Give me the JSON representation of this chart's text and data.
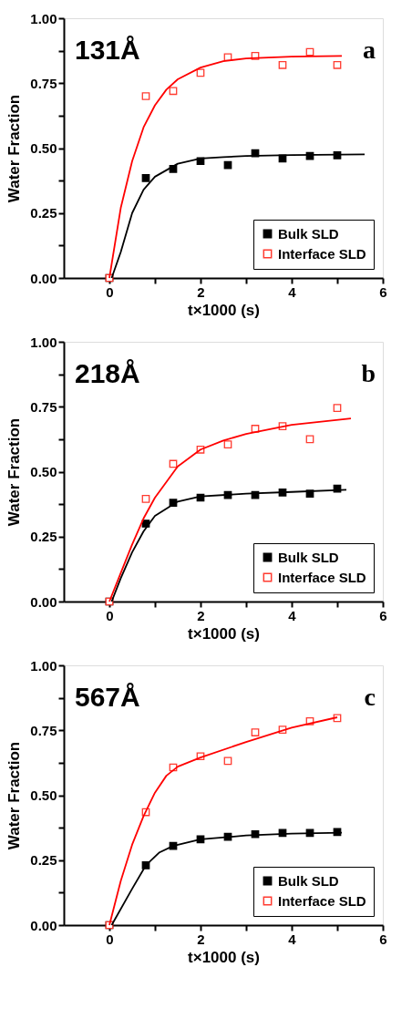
{
  "chart_data": [
    {
      "type": "scatter",
      "xlabel": "t×1000 (s)",
      "ylabel": "Water Fraction",
      "annotations": [
        "131Å",
        "a"
      ],
      "xlim": [
        -1,
        6
      ],
      "xticks": [
        0,
        {
          "value": 1,
          "label": null
        },
        2,
        {
          "value": 3,
          "label": null
        },
        4,
        {
          "value": 5,
          "label": null
        },
        6
      ],
      "ylim": [
        0,
        1
      ],
      "yticks": [
        {
          "value": 0,
          "label": "0.00"
        },
        {
          "value": 0.125,
          "label": null
        },
        {
          "value": 0.25,
          "label": "0.25"
        },
        {
          "value": 0.375,
          "label": null
        },
        {
          "value": 0.5,
          "label": "0.50"
        },
        {
          "value": 0.625,
          "label": null
        },
        {
          "value": 0.75,
          "label": "0.75"
        },
        {
          "value": 0.875,
          "label": null
        },
        {
          "value": 1,
          "label": "1.00"
        }
      ],
      "grid": false,
      "legend": "bottom right",
      "series": [
        {
          "name": "Bulk SLD",
          "marker": "square",
          "color": "#000000",
          "x": [
            0,
            0.8,
            1.4,
            2,
            2.6,
            3.2,
            3.8,
            4.4,
            5
          ],
          "values": [
            0,
            0.385,
            0.42,
            0.45,
            0.435,
            0.48,
            0.46,
            0.47,
            0.472
          ]
        },
        {
          "name": "Interface SLD",
          "marker": "square",
          "color": "#ff3b30",
          "x": [
            0,
            0.8,
            1.4,
            2,
            2.6,
            3.2,
            3.8,
            4.4,
            5
          ],
          "values": [
            0,
            0.7,
            0.72,
            0.79,
            0.85,
            0.855,
            0.82,
            0.87,
            0.82
          ]
        },
        {
          "type": "line",
          "marker": "none",
          "line_style": "solid",
          "color": "#000000",
          "x": [
            0.05,
            0.25,
            0.5,
            0.75,
            1,
            1.5,
            2,
            2.5,
            3,
            4,
            5.6
          ],
          "values": [
            0,
            0.1,
            0.25,
            0.34,
            0.39,
            0.44,
            0.46,
            0.465,
            0.47,
            0.473,
            0.476
          ]
        },
        {
          "type": "line",
          "marker": "none",
          "line_style": "solid",
          "color": "#ff0000",
          "x": [
            0,
            0.25,
            0.5,
            0.75,
            1,
            1.25,
            1.5,
            2,
            2.5,
            3,
            4,
            5.1
          ],
          "values": [
            0,
            0.27,
            0.45,
            0.58,
            0.665,
            0.725,
            0.765,
            0.81,
            0.835,
            0.845,
            0.852,
            0.855
          ]
        }
      ]
    },
    {
      "type": "scatter",
      "xlabel": "t×1000 (s)",
      "ylabel": "Water Fraction",
      "annotations": [
        "218Å",
        "b"
      ],
      "xlim": [
        -1,
        6
      ],
      "xticks": [
        0,
        {
          "value": 1,
          "label": null
        },
        2,
        {
          "value": 3,
          "label": null
        },
        4,
        {
          "value": 5,
          "label": null
        },
        6
      ],
      "ylim": [
        0,
        1
      ],
      "yticks": [
        {
          "value": 0,
          "label": "0.00"
        },
        {
          "value": 0.125,
          "label": null
        },
        {
          "value": 0.25,
          "label": "0.25"
        },
        {
          "value": 0.375,
          "label": null
        },
        {
          "value": 0.5,
          "label": "0.50"
        },
        {
          "value": 0.625,
          "label": null
        },
        {
          "value": 0.75,
          "label": "0.75"
        },
        {
          "value": 0.875,
          "label": null
        },
        {
          "value": 1,
          "label": "1.00"
        }
      ],
      "grid": false,
      "legend": "bottom right",
      "series": [
        {
          "name": "Bulk SLD",
          "marker": "square",
          "color": "#000000",
          "x": [
            0,
            0.8,
            1.4,
            2,
            2.6,
            3.2,
            3.8,
            4.4,
            5
          ],
          "values": [
            0,
            0.3,
            0.38,
            0.4,
            0.41,
            0.41,
            0.42,
            0.415,
            0.435
          ]
        },
        {
          "name": "Interface SLD",
          "marker": "square",
          "color": "#ff3b30",
          "x": [
            0,
            0.8,
            1.4,
            2,
            2.6,
            3.2,
            3.8,
            4.4,
            5
          ],
          "values": [
            0,
            0.395,
            0.53,
            0.585,
            0.605,
            0.665,
            0.675,
            0.625,
            0.745
          ]
        },
        {
          "type": "line",
          "marker": "none",
          "line_style": "solid",
          "color": "#000000",
          "x": [
            0.05,
            0.25,
            0.5,
            0.75,
            1,
            1.5,
            2,
            3,
            4,
            5.2
          ],
          "values": [
            0,
            0.09,
            0.19,
            0.27,
            0.33,
            0.385,
            0.405,
            0.415,
            0.422,
            0.43
          ]
        },
        {
          "type": "line",
          "marker": "none",
          "line_style": "solid",
          "color": "#ff0000",
          "x": [
            0,
            0.25,
            0.5,
            0.75,
            1,
            1.5,
            2,
            2.5,
            3,
            4,
            5.3
          ],
          "values": [
            0,
            0.11,
            0.22,
            0.32,
            0.4,
            0.52,
            0.585,
            0.62,
            0.645,
            0.68,
            0.705
          ]
        }
      ]
    },
    {
      "type": "scatter",
      "xlabel": "t×1000 (s)",
      "ylabel": "Water Fraction",
      "annotations": [
        "567Å",
        "c"
      ],
      "xlim": [
        -1,
        6
      ],
      "xticks": [
        0,
        {
          "value": 1,
          "label": null
        },
        2,
        {
          "value": 3,
          "label": null
        },
        4,
        {
          "value": 5,
          "label": null
        },
        6
      ],
      "ylim": [
        0,
        1
      ],
      "yticks": [
        {
          "value": 0,
          "label": "0.00"
        },
        {
          "value": 0.125,
          "label": null
        },
        {
          "value": 0.25,
          "label": "0.25"
        },
        {
          "value": 0.375,
          "label": null
        },
        {
          "value": 0.5,
          "label": "0.50"
        },
        {
          "value": 0.625,
          "label": null
        },
        {
          "value": 0.75,
          "label": "0.75"
        },
        {
          "value": 0.875,
          "label": null
        },
        {
          "value": 1,
          "label": "1.00"
        }
      ],
      "grid": false,
      "legend": "bottom right",
      "series": [
        {
          "name": "Bulk SLD",
          "marker": "square",
          "color": "#000000",
          "x": [
            0,
            0.8,
            1.4,
            2,
            2.6,
            3.2,
            3.8,
            4.4,
            5
          ],
          "values": [
            0,
            0.23,
            0.305,
            0.33,
            0.34,
            0.35,
            0.355,
            0.355,
            0.358
          ]
        },
        {
          "name": "Interface SLD",
          "marker": "square",
          "color": "#ff3b30",
          "x": [
            0,
            0.8,
            1.4,
            2,
            2.6,
            3.2,
            3.8,
            4.4,
            5
          ],
          "values": [
            0,
            0.435,
            0.607,
            0.65,
            0.632,
            0.742,
            0.752,
            0.785,
            0.797
          ]
        },
        {
          "type": "line",
          "marker": "none",
          "line_style": "solid",
          "color": "#000000",
          "x": [
            0.05,
            0.5,
            0.8,
            1.1,
            1.4,
            2,
            3,
            4,
            5.1
          ],
          "values": [
            0,
            0.14,
            0.23,
            0.28,
            0.305,
            0.33,
            0.345,
            0.352,
            0.356
          ]
        },
        {
          "type": "line",
          "marker": "none",
          "line_style": "solid",
          "color": "#ff0000",
          "x": [
            0,
            0.25,
            0.5,
            0.75,
            1,
            1.25,
            1.5,
            2,
            3,
            4,
            5
          ],
          "values": [
            0,
            0.17,
            0.31,
            0.42,
            0.51,
            0.575,
            0.61,
            0.645,
            0.705,
            0.76,
            0.8
          ]
        }
      ]
    }
  ]
}
